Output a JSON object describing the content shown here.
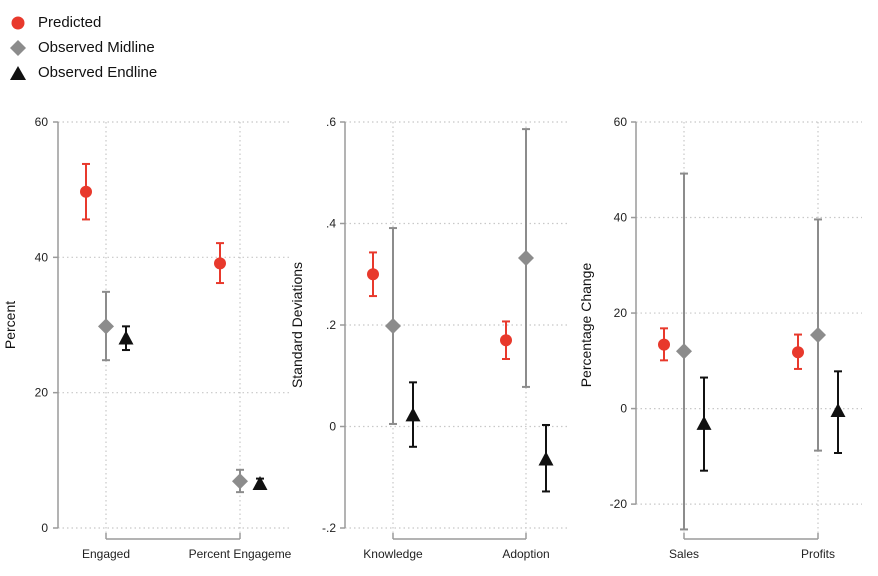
{
  "legend": {
    "items": [
      {
        "label": "Predicted",
        "marker": "circle",
        "color": "#e8392c"
      },
      {
        "label": "Observed Midline",
        "marker": "diamond",
        "color": "#8c8c8c"
      },
      {
        "label": "Observed Endline",
        "marker": "triangle",
        "color": "#111111"
      }
    ]
  },
  "colors": {
    "predicted": "#e8392c",
    "midline": "#8c8c8c",
    "endline": "#111111",
    "grid": "#c8c8c8",
    "axis": "#9a9a9a"
  },
  "chart_data": [
    {
      "type": "scatter",
      "ylabel": "Percent",
      "ylim": [
        0,
        60
      ],
      "yticks": [
        0,
        20,
        40,
        60
      ],
      "yticklabels": [
        "0",
        "20",
        "40",
        "60"
      ],
      "categories": [
        "Engaged",
        "Percent Engageme"
      ],
      "grid": true,
      "series": [
        {
          "name": "Predicted",
          "points": [
            {
              "y": 49.7,
              "lo": 45.6,
              "hi": 53.8
            },
            {
              "y": 39.1,
              "lo": 36.2,
              "hi": 42.1
            }
          ]
        },
        {
          "name": "Observed Midline",
          "points": [
            {
              "y": 29.8,
              "lo": 24.8,
              "hi": 34.9
            },
            {
              "y": 6.9,
              "lo": 5.3,
              "hi": 8.6
            }
          ]
        },
        {
          "name": "Observed Endline",
          "points": [
            {
              "y": 28.0,
              "lo": 26.3,
              "hi": 29.8
            },
            {
              "y": 6.5,
              "lo": 5.8,
              "hi": 7.3
            }
          ]
        }
      ]
    },
    {
      "type": "scatter",
      "ylabel": "Standard Deviations",
      "ylim": [
        -0.2,
        0.6
      ],
      "yticks": [
        -0.2,
        0,
        0.2,
        0.4,
        0.6
      ],
      "yticklabels": [
        "-.2",
        "0",
        ".2",
        ".4",
        ".6"
      ],
      "categories": [
        "Knowledge",
        "Adoption"
      ],
      "grid": true,
      "series": [
        {
          "name": "Predicted",
          "points": [
            {
              "y": 0.3,
              "lo": 0.257,
              "hi": 0.343
            },
            {
              "y": 0.17,
              "lo": 0.133,
              "hi": 0.207
            }
          ]
        },
        {
          "name": "Observed Midline",
          "points": [
            {
              "y": 0.198,
              "lo": 0.005,
              "hi": 0.391
            },
            {
              "y": 0.332,
              "lo": 0.078,
              "hi": 0.586
            }
          ]
        },
        {
          "name": "Observed Endline",
          "points": [
            {
              "y": 0.022,
              "lo": -0.04,
              "hi": 0.087
            },
            {
              "y": -0.065,
              "lo": -0.128,
              "hi": 0.003
            }
          ]
        }
      ]
    },
    {
      "type": "scatter",
      "ylabel": "Percentage Change",
      "ylim": [
        -25,
        60
      ],
      "yticks": [
        -20,
        0,
        20,
        40,
        60
      ],
      "yticklabels": [
        "-20",
        "0",
        "20",
        "40",
        "60"
      ],
      "categories": [
        "Sales",
        "Profits"
      ],
      "grid": true,
      "series": [
        {
          "name": "Predicted",
          "points": [
            {
              "y": 13.4,
              "lo": 10.1,
              "hi": 16.8
            },
            {
              "y": 11.8,
              "lo": 8.3,
              "hi": 15.5
            }
          ]
        },
        {
          "name": "Observed Midline",
          "points": [
            {
              "y": 12.0,
              "lo": -25.3,
              "hi": 49.2
            },
            {
              "y": 15.4,
              "lo": -8.8,
              "hi": 39.6
            }
          ]
        },
        {
          "name": "Observed Endline",
          "points": [
            {
              "y": -3.2,
              "lo": -13.0,
              "hi": 6.5
            },
            {
              "y": -0.5,
              "lo": -9.3,
              "hi": 7.8
            }
          ]
        }
      ]
    }
  ]
}
